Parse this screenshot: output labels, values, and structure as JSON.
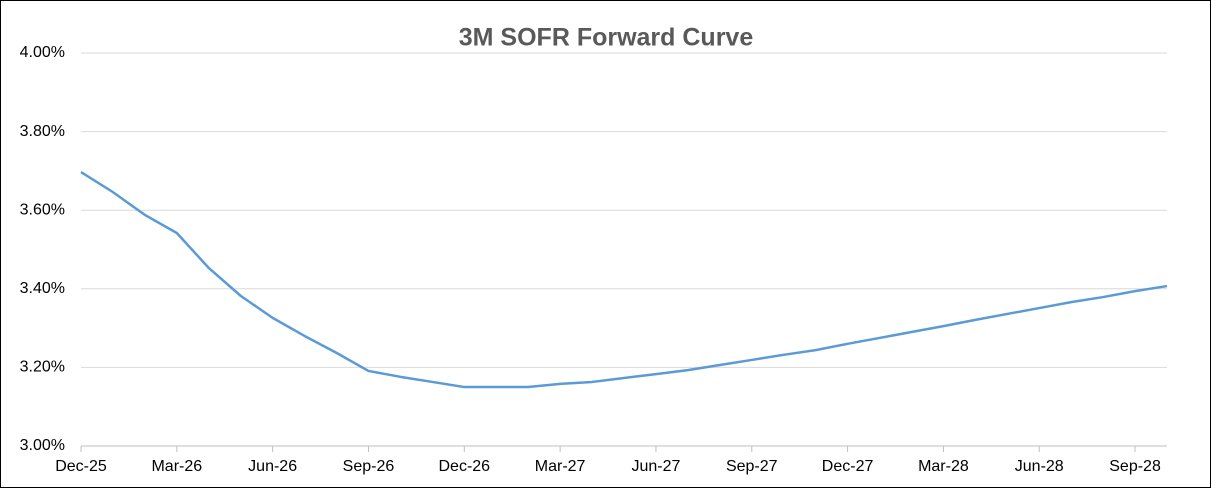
{
  "chart_data": {
    "type": "line",
    "title": "3M SOFR Forward Curve",
    "categories": [
      "Dec-25",
      null,
      null,
      "Mar-26",
      null,
      null,
      "Jun-26",
      null,
      null,
      "Sep-26",
      null,
      null,
      "Dec-26",
      null,
      null,
      "Mar-27",
      null,
      null,
      "Jun-27",
      null,
      null,
      "Sep-27",
      null,
      null,
      "Dec-27",
      null,
      null,
      "Mar-28",
      null,
      null,
      "Jun-28",
      null,
      null,
      "Sep-28",
      null
    ],
    "series": [
      {
        "name": "3M SOFR",
        "color": "#5b9bd5",
        "values": [
          3.697,
          3.646,
          3.588,
          3.542,
          3.453,
          3.382,
          3.326,
          3.28,
          3.237,
          3.191,
          3.176,
          3.163,
          3.15,
          3.15,
          3.15,
          3.158,
          3.163,
          3.173,
          3.183,
          3.193,
          3.206,
          3.219,
          3.232,
          3.244,
          3.26,
          3.275,
          3.29,
          3.305,
          3.321,
          3.336,
          3.351,
          3.366,
          3.379,
          3.394,
          3.407
        ]
      }
    ],
    "ylim": [
      3.0,
      4.0
    ],
    "yticks": [
      {
        "value": 3.0,
        "label": "3.00%"
      },
      {
        "value": 3.2,
        "label": "3.20%"
      },
      {
        "value": 3.4,
        "label": "3.40%"
      },
      {
        "value": 3.6,
        "label": "3.60%"
      },
      {
        "value": 3.8,
        "label": "3.80%"
      },
      {
        "value": 4.0,
        "label": "4.00%"
      }
    ],
    "grid": true
  }
}
